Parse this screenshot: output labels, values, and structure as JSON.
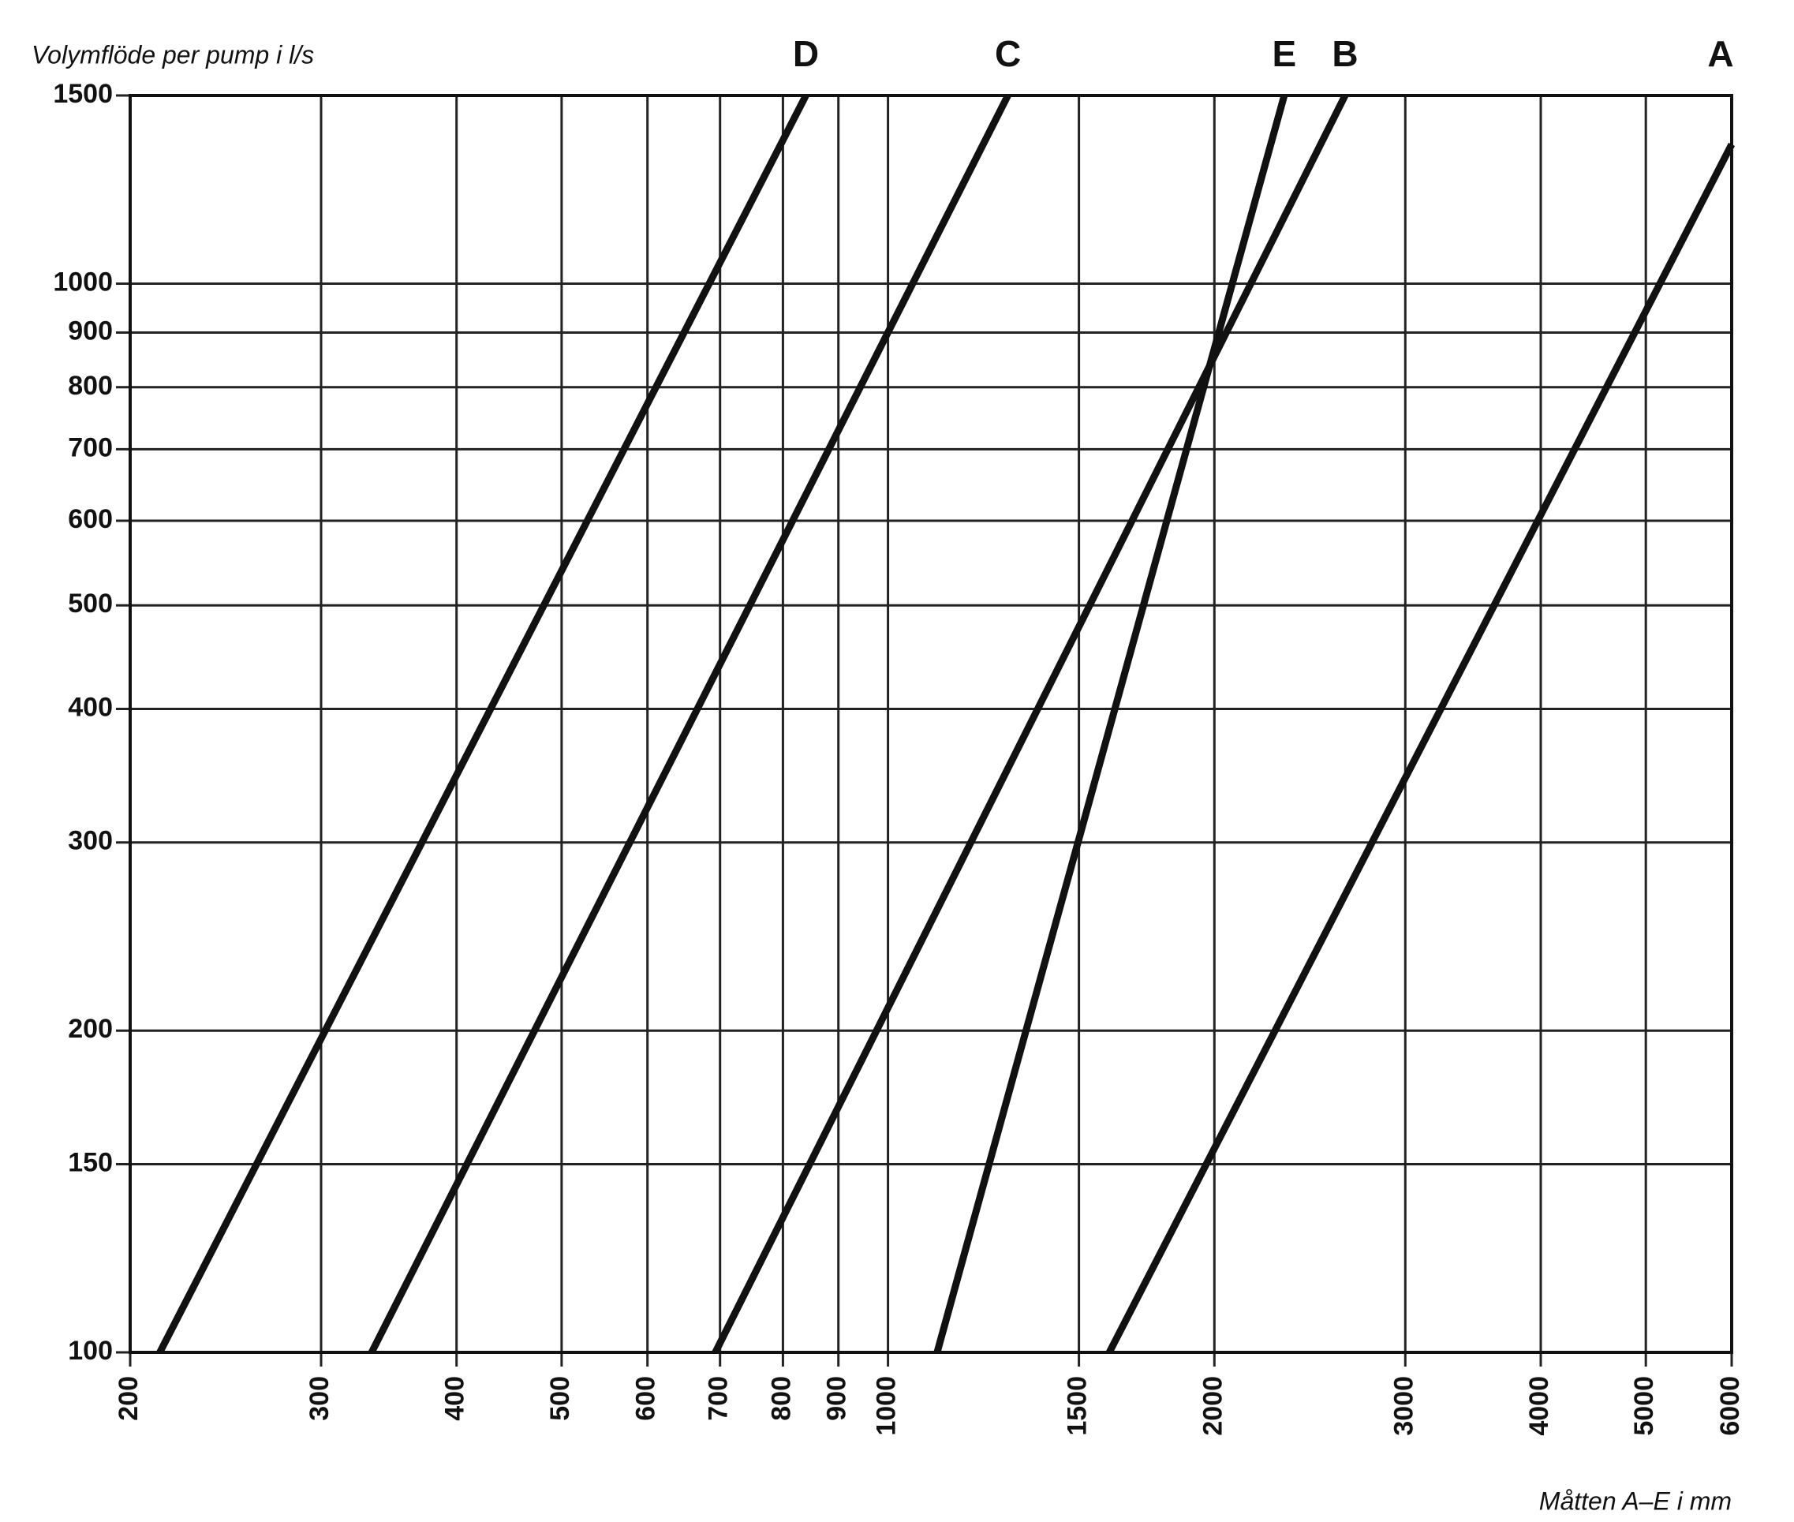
{
  "chart_data": {
    "type": "line",
    "y_label": "Volymflöde per pump i l/s",
    "x_label": "Måtten A–E i mm",
    "log_x": true,
    "log_y": true,
    "grid": true,
    "xlim": [
      200,
      6000
    ],
    "ylim": [
      100,
      1500
    ],
    "xticks": [
      200,
      300,
      400,
      500,
      600,
      700,
      800,
      900,
      1000,
      1500,
      2000,
      3000,
      4000,
      5000,
      6000
    ],
    "yticks": [
      100,
      150,
      200,
      300,
      400,
      500,
      600,
      700,
      800,
      900,
      1000,
      1500
    ],
    "series": [
      {
        "name": "D",
        "color": "#111111",
        "x": [
          213,
          840
        ],
        "values": [
          100,
          1500
        ]
      },
      {
        "name": "C",
        "color": "#111111",
        "x": [
          334,
          1290
        ],
        "values": [
          100,
          1500
        ]
      },
      {
        "name": "E",
        "color": "#111111",
        "x": [
          1110,
          2320
        ],
        "values": [
          100,
          1500
        ]
      },
      {
        "name": "B",
        "color": "#111111",
        "x": [
          693,
          2640
        ],
        "values": [
          100,
          1500
        ]
      },
      {
        "name": "A",
        "color": "#111111",
        "x": [
          1600,
          6000
        ],
        "values": [
          100,
          1350
        ]
      }
    ]
  }
}
